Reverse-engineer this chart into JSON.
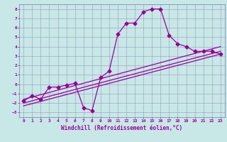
{
  "xlabel": "Windchill (Refroidissement éolien,°C)",
  "xlim": [
    -0.5,
    23.5
  ],
  "ylim": [
    -3.5,
    8.5
  ],
  "xticks": [
    0,
    1,
    2,
    3,
    4,
    5,
    6,
    7,
    8,
    9,
    10,
    11,
    12,
    13,
    14,
    15,
    16,
    17,
    18,
    19,
    20,
    21,
    22,
    23
  ],
  "yticks": [
    -3,
    -2,
    -1,
    0,
    1,
    2,
    3,
    4,
    5,
    6,
    7,
    8
  ],
  "bg_color": "#c8e8e8",
  "grid_color": "#9999bb",
  "line_color": "#990099",
  "spine_color": "#7777aa",
  "main_series_x": [
    0,
    1,
    2,
    3,
    4,
    5,
    6,
    7,
    8,
    9,
    10,
    11,
    12,
    13,
    14,
    15,
    16,
    17,
    18,
    19,
    20,
    21,
    22,
    23
  ],
  "main_series_y": [
    -1.8,
    -1.2,
    -1.6,
    -0.3,
    -0.3,
    -0.1,
    0.1,
    -2.5,
    -2.8,
    0.7,
    1.4,
    5.3,
    6.5,
    6.5,
    7.7,
    8.0,
    8.0,
    5.2,
    4.3,
    4.0,
    3.5,
    3.5,
    3.5,
    3.2
  ],
  "trend1_x": [
    0,
    23
  ],
  "trend1_y": [
    -1.6,
    4.0
  ],
  "trend2_x": [
    0,
    23
  ],
  "trend2_y": [
    -2.0,
    3.5
  ],
  "trend3_x": [
    0,
    23
  ],
  "trend3_y": [
    -2.3,
    3.2
  ],
  "marker": "D",
  "marker_size": 2.5,
  "line_width": 0.9,
  "tick_fontsize": 4.5,
  "label_fontsize": 5.5
}
